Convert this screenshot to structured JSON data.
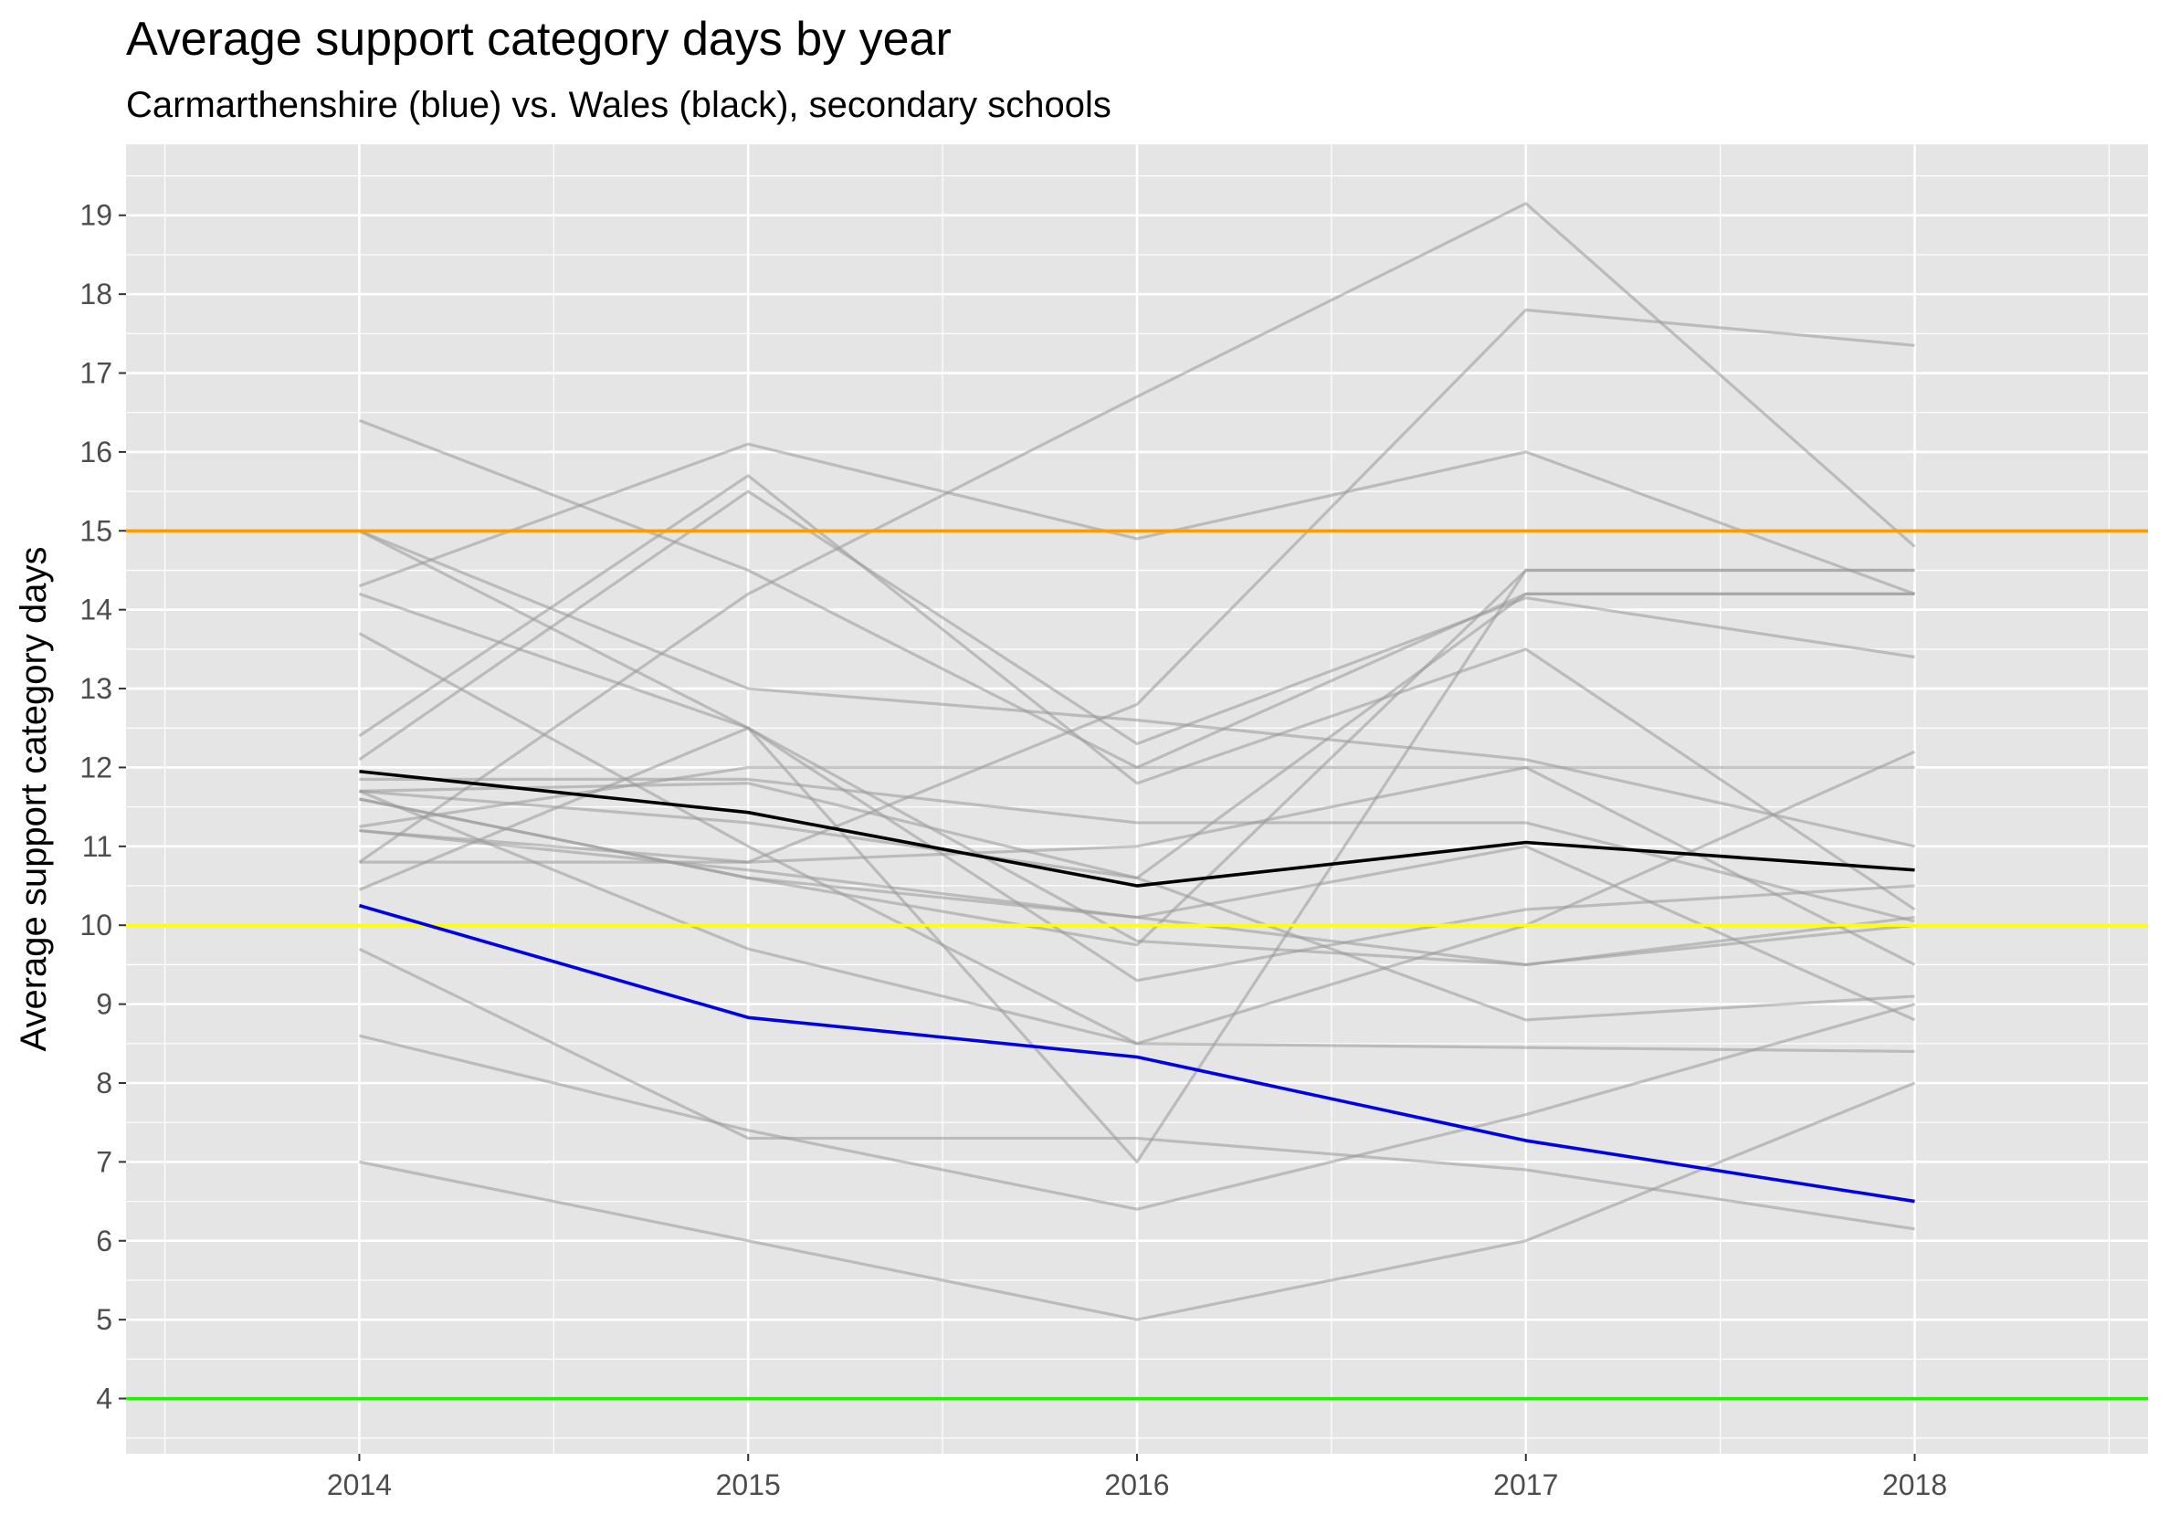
{
  "chart_data": {
    "type": "line",
    "title": "Average support category days by year",
    "subtitle": "Carmarthenshire (blue) vs. Wales (black), secondary schools",
    "xlabel": "",
    "ylabel": "Average support category days",
    "x": [
      2014,
      2015,
      2016,
      2017,
      2018
    ],
    "xlim": [
      2013.4,
      2018.6
    ],
    "ylim": [
      3.3,
      19.9
    ],
    "y_ticks": [
      4,
      5,
      6,
      7,
      8,
      9,
      10,
      11,
      12,
      13,
      14,
      15,
      16,
      17,
      18,
      19
    ],
    "grid": true,
    "legend": "none",
    "colors": {
      "panel": "#e5e5e5",
      "grid": "#ffffff",
      "schools": "#999999",
      "carmarthenshire": "#0000e6",
      "wales": "#000000",
      "threshold_15": "#ff9a00",
      "threshold_10": "#ffff00",
      "threshold_4": "#22ee00"
    },
    "reference_lines": [
      {
        "y": 15,
        "color_key": "threshold_15"
      },
      {
        "y": 10,
        "color_key": "threshold_10"
      },
      {
        "y": 4,
        "color_key": "threshold_4"
      }
    ],
    "schools": [
      [
        16.4,
        14.5,
        12.0,
        14.2,
        14.2
      ],
      [
        15.0,
        13.0,
        12.6,
        12.1,
        11.0
      ],
      [
        15.0,
        12.5,
        9.3,
        10.2,
        10.5
      ],
      [
        14.3,
        16.1,
        14.9,
        16.0,
        14.2
      ],
      [
        14.2,
        12.5,
        7.0,
        14.5,
        14.5
      ],
      [
        13.7,
        11.0,
        8.5,
        10.0,
        12.2
      ],
      [
        12.4,
        15.7,
        11.8,
        13.5,
        10.2
      ],
      [
        12.1,
        15.5,
        12.3,
        14.15,
        13.4
      ],
      [
        11.85,
        11.85,
        11.3,
        11.3,
        10.05
      ],
      [
        11.7,
        9.7,
        8.5,
        8.45,
        8.4
      ],
      [
        11.6,
        10.6,
        9.75,
        14.5,
        14.5
      ],
      [
        11.25,
        12.0,
        12.0,
        12.0,
        12.0
      ],
      [
        11.2,
        10.8,
        11.0,
        12.0,
        9.5
      ],
      [
        10.8,
        14.2,
        16.7,
        19.15,
        14.8
      ],
      [
        10.45,
        12.5,
        9.8,
        9.5,
        10.1
      ],
      [
        9.7,
        7.3,
        7.3,
        6.9,
        6.15
      ],
      [
        8.6,
        7.4,
        6.4,
        7.6,
        9.0
      ],
      [
        7.0,
        6.0,
        5.0,
        6.0,
        8.0
      ],
      [
        11.7,
        11.8,
        10.6,
        8.8,
        9.1
      ],
      [
        11.2,
        10.7,
        10.1,
        9.5,
        10.0
      ],
      [
        10.8,
        10.8,
        12.8,
        17.8,
        17.35
      ],
      [
        11.7,
        11.3,
        10.6,
        14.2,
        14.2
      ],
      [
        11.6,
        10.6,
        10.1,
        11.0,
        8.8
      ]
    ],
    "series": [
      {
        "key": "carmarthenshire",
        "values": [
          10.25,
          8.83,
          8.33,
          7.27,
          6.5
        ]
      },
      {
        "key": "wales",
        "values": [
          11.95,
          11.43,
          10.5,
          11.05,
          10.7
        ]
      }
    ]
  }
}
